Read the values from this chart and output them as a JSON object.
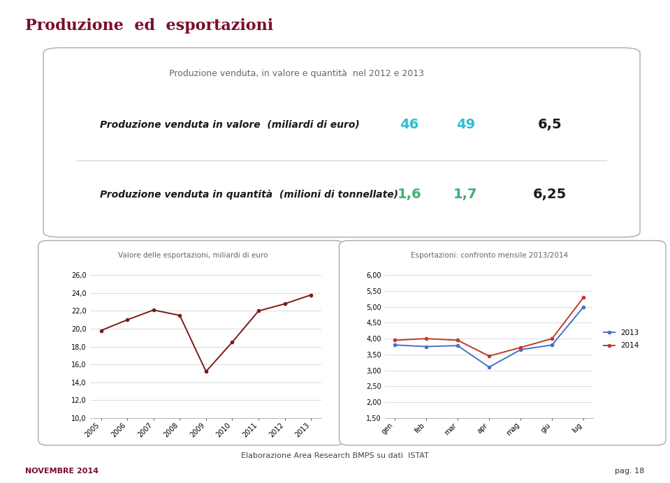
{
  "page_title": "Produzione  ed  esportazioni",
  "page_bg": "#ffffff",
  "title_color": "#7B0D2A",
  "top_box": {
    "title": "Produzione venduta, in valore e quantità  nel 2012 e 2013",
    "row1_label": "Produzione venduta in valore  (miliardi di euro)",
    "row1_v1": "46",
    "row1_v2": "49",
    "row1_v3": "6,5",
    "row1_c1": "#2EBFD4",
    "row1_c2": "#2EBFD4",
    "row1_c3": "#1a1a1a",
    "row2_label": "Produzione venduta in quantità  (milioni di tonnellate)",
    "row2_v1": "1,6",
    "row2_v2": "1,7",
    "row2_v3": "6,25",
    "row2_c1": "#3CB371",
    "row2_c2": "#3CB371",
    "row2_c3": "#1a1a1a"
  },
  "chart1": {
    "title": "Valore delle esportazioni, miliardi di euro",
    "years": [
      "2005",
      "2006",
      "2007",
      "2008",
      "2009",
      "2010",
      "2011",
      "2012",
      "2013"
    ],
    "values": [
      19.8,
      21.0,
      22.1,
      21.5,
      15.2,
      18.5,
      22.0,
      22.8,
      23.8
    ],
    "line_color": "#7B1A1A",
    "ylim": [
      10.0,
      26.0
    ],
    "yticks": [
      10.0,
      12.0,
      14.0,
      16.0,
      18.0,
      20.0,
      22.0,
      24.0,
      26.0
    ]
  },
  "chart2": {
    "title": "Esportazioni: confronto mensile 2013/2014",
    "months": [
      "gen",
      "feb",
      "mar",
      "apr",
      "mag",
      "giu",
      "lug"
    ],
    "values_2013": [
      3.8,
      3.75,
      3.78,
      3.1,
      3.65,
      3.8,
      5.0
    ],
    "values_2014": [
      3.95,
      4.0,
      3.95,
      3.45,
      3.72,
      4.0,
      5.3
    ],
    "color_2013": "#4472c4",
    "color_2014": "#c0392b",
    "ylim": [
      1.5,
      6.0
    ],
    "yticks": [
      1.5,
      2.0,
      2.5,
      3.0,
      3.5,
      4.0,
      4.5,
      5.0,
      5.5,
      6.0
    ]
  },
  "footer_left": "NOVEMBRE 2014",
  "footer_right": "pag. 18",
  "footer_color": "#7B0D2A",
  "source_text": "Elaborazione Area Research BMPS su dati  ISTAT"
}
